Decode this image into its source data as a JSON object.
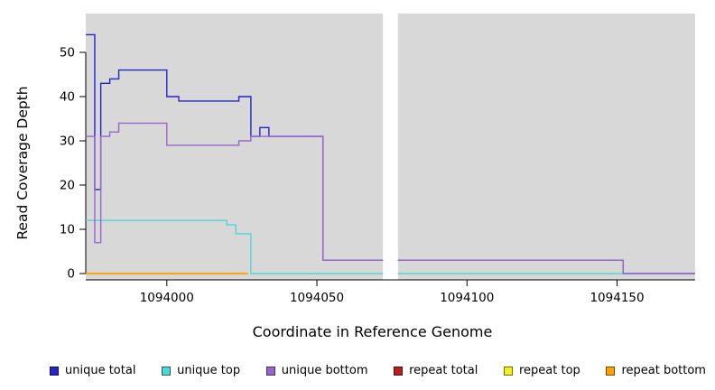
{
  "figure": {
    "plot_background": "#d8d8d8",
    "gap_color": "#ffffff",
    "axis_color": "#000000"
  },
  "chart_data": {
    "type": "line",
    "style": "step",
    "title": "",
    "xlabel": "Coordinate in Reference Genome",
    "ylabel": "Read Coverage Depth",
    "xlim": [
      1093973,
      1094176
    ],
    "ylim": [
      0,
      58
    ],
    "x_ticks": [
      1094000,
      1094050,
      1094100,
      1094150
    ],
    "y_ticks": [
      0,
      10,
      20,
      30,
      40,
      50
    ],
    "gap_region": [
      1094072,
      1094077
    ],
    "grid": false,
    "legend_position": "bottom",
    "series": [
      {
        "name": "unique total",
        "color": "#2424cc",
        "parts": [
          {
            "points": [
              [
                1093973,
                54
              ],
              [
                1093976,
                19
              ],
              [
                1093978,
                43
              ],
              [
                1093981,
                44
              ],
              [
                1093984,
                46
              ],
              [
                1094000,
                40
              ],
              [
                1094004,
                39
              ],
              [
                1094024,
                40
              ],
              [
                1094028,
                31
              ],
              [
                1094031,
                33
              ],
              [
                1094034,
                31
              ],
              [
                1094052,
                3
              ]
            ],
            "end": 1094072
          },
          {
            "points": [
              [
                1094077,
                3
              ],
              [
                1094152,
                0
              ]
            ],
            "end": 1094176
          }
        ]
      },
      {
        "name": "unique top",
        "color": "#52d5d5",
        "parts": [
          {
            "points": [
              [
                1093973,
                12
              ],
              [
                1094020,
                11
              ],
              [
                1094023,
                9
              ],
              [
                1094028,
                0
              ]
            ],
            "end": 1094072
          },
          {
            "points": [
              [
                1094077,
                0
              ]
            ],
            "end": 1094176
          }
        ]
      },
      {
        "name": "unique bottom",
        "color": "#9966cc",
        "parts": [
          {
            "points": [
              [
                1093973,
                31
              ],
              [
                1093976,
                7
              ],
              [
                1093978,
                31
              ],
              [
                1093981,
                32
              ],
              [
                1093984,
                34
              ],
              [
                1094000,
                29
              ],
              [
                1094024,
                30
              ],
              [
                1094028,
                31
              ],
              [
                1094052,
                3
              ]
            ],
            "end": 1094072
          },
          {
            "points": [
              [
                1094077,
                3
              ],
              [
                1094152,
                0
              ]
            ],
            "end": 1094176
          }
        ]
      },
      {
        "name": "repeat total",
        "color": "#b22222",
        "parts": [
          {
            "points": [
              [
                1093973,
                0
              ]
            ],
            "end": 1094027
          }
        ]
      },
      {
        "name": "repeat top",
        "color": "#f2f218",
        "parts": [
          {
            "points": [
              [
                1093973,
                0
              ]
            ],
            "end": 1094027
          }
        ]
      },
      {
        "name": "repeat bottom",
        "color": "#ffa200",
        "parts": [
          {
            "points": [
              [
                1093973,
                0
              ]
            ],
            "end": 1094027
          }
        ]
      }
    ]
  },
  "legend": {
    "items": [
      {
        "label": "unique total",
        "color": "#2424cc"
      },
      {
        "label": "unique top",
        "color": "#52d5d5"
      },
      {
        "label": "unique bottom",
        "color": "#9966cc"
      },
      {
        "label": "repeat total",
        "color": "#b22222"
      },
      {
        "label": "repeat top",
        "color": "#f2f218"
      },
      {
        "label": "repeat bottom",
        "color": "#ffa200"
      }
    ]
  }
}
